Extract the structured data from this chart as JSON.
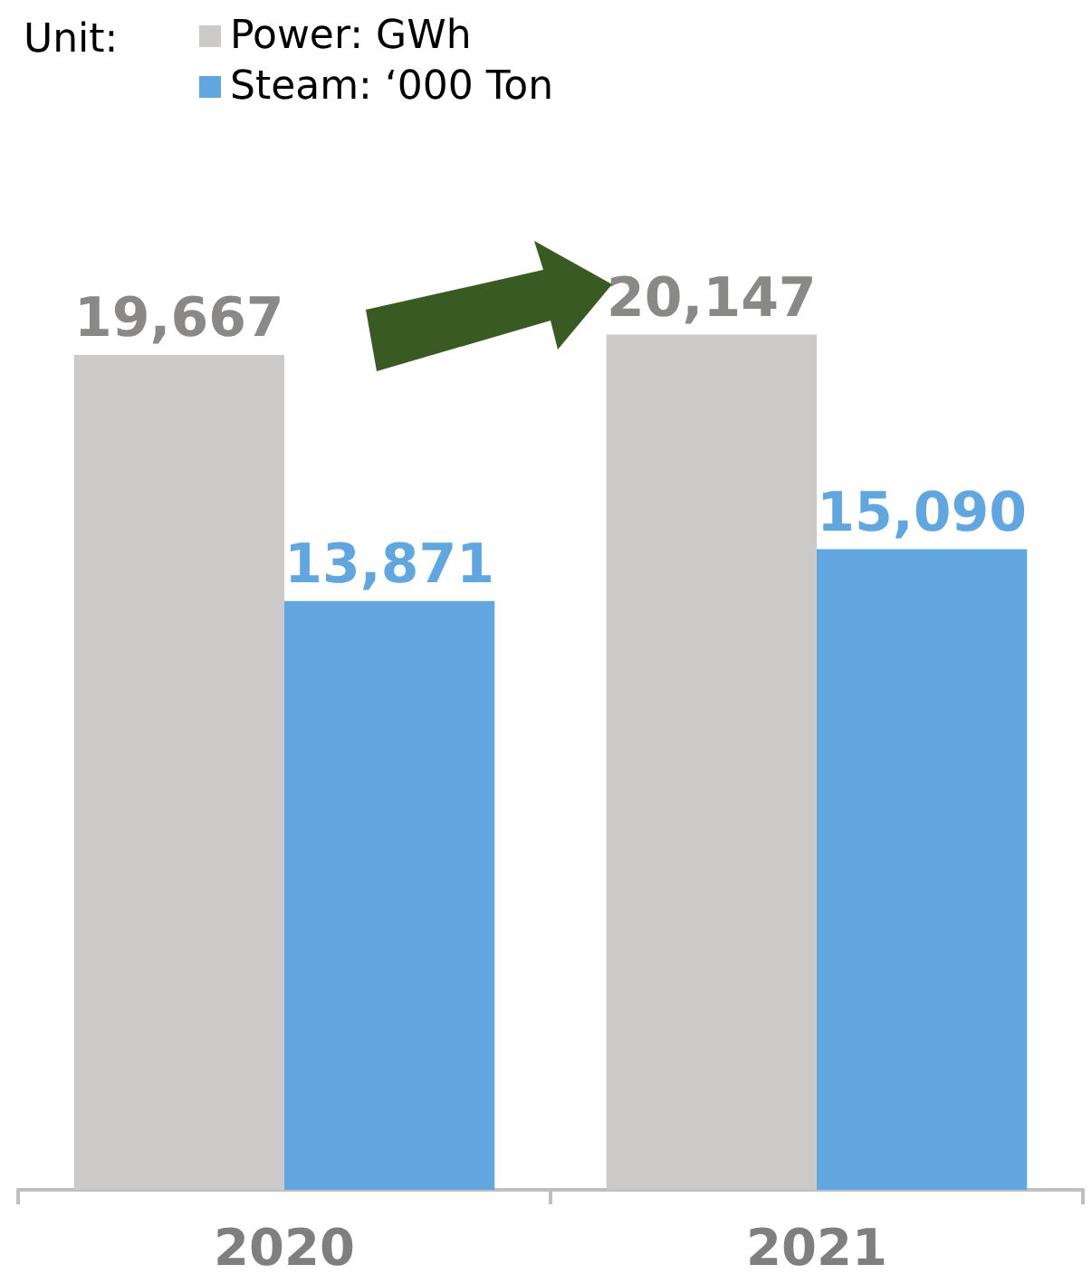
{
  "chart_data": {
    "type": "bar",
    "legend_title": "Unit:",
    "categories": [
      "2020",
      "2021"
    ],
    "series": [
      {
        "name": "Power: GWh",
        "color": "#cbcac8",
        "values": [
          19667,
          20147
        ],
        "value_labels": [
          "19,667",
          "20,147"
        ]
      },
      {
        "name": "Steam: ‘000 Ton",
        "color": "#62a6e0",
        "values": [
          13871,
          15090
        ],
        "value_labels": [
          "13,871",
          "15,090"
        ]
      }
    ],
    "legend": "top left"
  }
}
